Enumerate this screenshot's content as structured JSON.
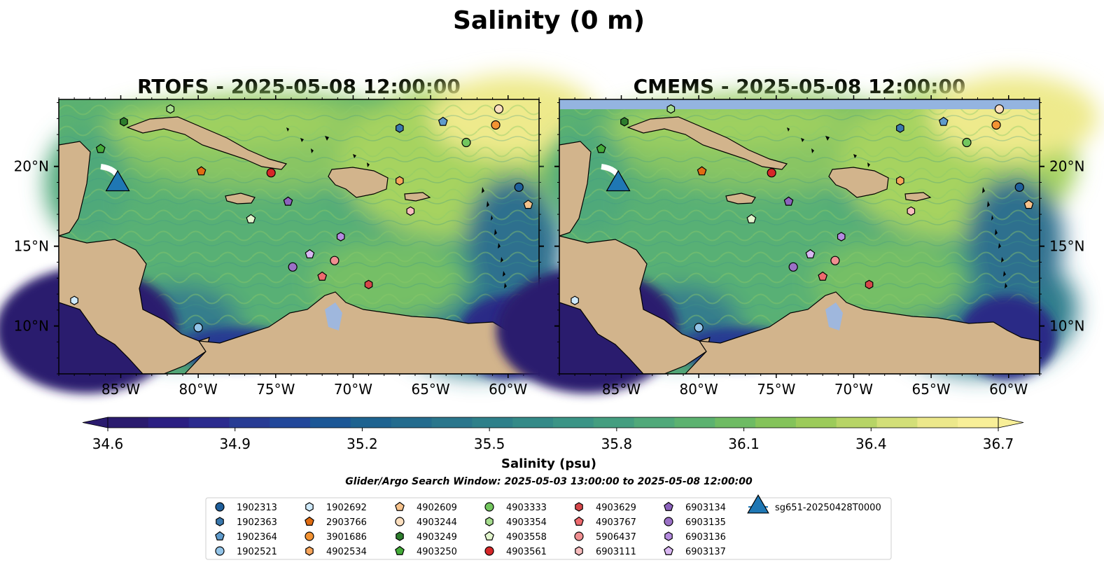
{
  "figure": {
    "title": "Salinity (0 m)",
    "window_text": "Glider/Argo Search Window: 2025-05-03 13:00:00 to 2025-05-08 12:00:00"
  },
  "panels": [
    {
      "title": "RTOFS - 2025-05-08 12:00:00"
    },
    {
      "title": "CMEMS - 2025-05-08 12:00:00"
    }
  ],
  "map": {
    "lon_range": [
      -89,
      -58
    ],
    "lat_range": [
      7,
      24.2
    ],
    "lon_ticks": [
      -85,
      -80,
      -75,
      -70,
      -65,
      -60
    ],
    "lon_tick_labels": [
      "85°W",
      "80°W",
      "75°W",
      "70°W",
      "65°W",
      "60°W"
    ],
    "lat_ticks": [
      10,
      15,
      20
    ],
    "lat_tick_labels": [
      "10°N",
      "15°N",
      "20°N"
    ],
    "land_color": "#d2b48c",
    "ocean_colors": [
      "#2a1a6e",
      "#2c6e8e",
      "#54af7c",
      "#f5ea8c"
    ]
  },
  "colorbar": {
    "label": "Salinity (psu)",
    "min": 34.6,
    "max": 36.7,
    "ticks": [
      "34.6",
      "34.9",
      "35.2",
      "35.5",
      "35.8",
      "36.1",
      "36.4",
      "36.7"
    ],
    "colors": [
      "#2a1b6e",
      "#2b1f82",
      "#2b2b8e",
      "#283c94",
      "#22489a",
      "#1c5796",
      "#1e6390",
      "#246c8e",
      "#2a768c",
      "#2e808a",
      "#348a88",
      "#3b9486",
      "#449e80",
      "#50a97a",
      "#5cb270",
      "#6ebb63",
      "#84c35a",
      "#9ccb5a",
      "#b7d466",
      "#d3df78",
      "#ece88b",
      "#f8ef98"
    ]
  },
  "markers": [
    {
      "id": "1902313",
      "shape": "circle",
      "color": "#1f5f9b",
      "lon": -59.3,
      "lat": 18.7
    },
    {
      "id": "1902363",
      "shape": "hexagon",
      "color": "#3a78ad",
      "lon": -67.0,
      "lat": 22.4
    },
    {
      "id": "1902364",
      "shape": "pentagon",
      "color": "#5f9bcc",
      "lon": -64.2,
      "lat": 22.8
    },
    {
      "id": "1902521",
      "shape": "circle",
      "color": "#93c4e8",
      "lon": -80.0,
      "lat": 9.9
    },
    {
      "id": "1902692",
      "shape": "hexagon",
      "color": "#cfeafb",
      "lon": -88.0,
      "lat": 11.6
    },
    {
      "id": "2903766",
      "shape": "pentagon",
      "color": "#e06c12",
      "lon": -79.8,
      "lat": 19.7
    },
    {
      "id": "3901686",
      "shape": "circle",
      "color": "#f39333",
      "lon": -60.8,
      "lat": 22.6
    },
    {
      "id": "4902534",
      "shape": "hexagon",
      "color": "#f7a55b",
      "lon": -67.0,
      "lat": 19.1
    },
    {
      "id": "4902609",
      "shape": "pentagon",
      "color": "#f8c38c",
      "lon": -58.7,
      "lat": 17.6
    },
    {
      "id": "4903244",
      "shape": "circle",
      "color": "#fcdfbf",
      "lon": -60.6,
      "lat": 23.6
    },
    {
      "id": "4903249",
      "shape": "hexagon",
      "color": "#2d7d2d",
      "lon": -84.8,
      "lat": 22.8
    },
    {
      "id": "4903250",
      "shape": "pentagon",
      "color": "#44ab39",
      "lon": -86.3,
      "lat": 21.1
    },
    {
      "id": "4903333",
      "shape": "circle",
      "color": "#72c65e",
      "lon": -62.7,
      "lat": 21.5
    },
    {
      "id": "4903354",
      "shape": "hexagon",
      "color": "#a6dd8e",
      "lon": -81.8,
      "lat": 23.6
    },
    {
      "id": "4903558",
      "shape": "pentagon",
      "color": "#e2f5cd",
      "lon": -76.6,
      "lat": 16.7
    },
    {
      "id": "4903561",
      "shape": "circle",
      "color": "#d62728",
      "lon": -75.3,
      "lat": 19.6
    },
    {
      "id": "4903629",
      "shape": "hexagon",
      "color": "#d6474a",
      "lon": -69.0,
      "lat": 12.6
    },
    {
      "id": "4903767",
      "shape": "pentagon",
      "color": "#ee6a6e",
      "lon": -72.0,
      "lat": 13.1
    },
    {
      "id": "5906437",
      "shape": "circle",
      "color": "#f08f91",
      "lon": -71.2,
      "lat": 14.1
    },
    {
      "id": "6903111",
      "shape": "hexagon",
      "color": "#f7bcbd",
      "lon": -66.3,
      "lat": 17.2
    },
    {
      "id": "6903134",
      "shape": "pentagon",
      "color": "#8c63bd",
      "lon": -74.2,
      "lat": 17.8
    },
    {
      "id": "6903135",
      "shape": "circle",
      "color": "#9b71c6",
      "lon": -73.9,
      "lat": 13.7
    },
    {
      "id": "6903136",
      "shape": "hexagon",
      "color": "#b58be0",
      "lon": -70.8,
      "lat": 15.6
    },
    {
      "id": "6903137",
      "shape": "pentagon",
      "color": "#d9b7f2",
      "lon": -72.8,
      "lat": 14.5
    },
    {
      "id": "sg651-20250428T0000",
      "shape": "triangle",
      "color": "#1f77b4",
      "lon": -85.2,
      "lat": 19.0
    }
  ]
}
